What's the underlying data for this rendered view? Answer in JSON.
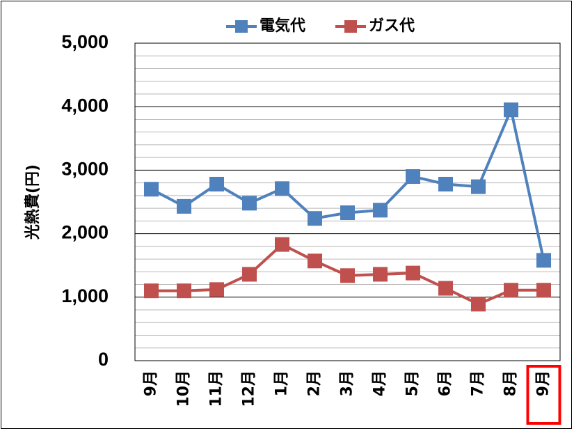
{
  "chart_data": {
    "type": "line",
    "ylabel": "光熱費(円)",
    "categories": [
      "9月",
      "10月",
      "11月",
      "12月",
      "1月",
      "2月",
      "3月",
      "4月",
      "5月",
      "6月",
      "7月",
      "8月",
      "9月"
    ],
    "y_ticks": [
      "0",
      "1,000",
      "2,000",
      "3,000",
      "4,000",
      "5,000"
    ],
    "ylim": [
      0,
      5000
    ],
    "grid": true,
    "legend": "top",
    "highlight_category_index": 12,
    "highlight_color": "#ff0000",
    "series": [
      {
        "name": "電気代",
        "color": "#4f81bd",
        "values": [
          2700,
          2430,
          2780,
          2480,
          2710,
          2240,
          2330,
          2370,
          2900,
          2780,
          2740,
          3950,
          1580
        ]
      },
      {
        "name": "ガス代",
        "color": "#c0504d",
        "values": [
          1100,
          1100,
          1120,
          1360,
          1830,
          1570,
          1340,
          1360,
          1380,
          1140,
          890,
          1110,
          1110
        ]
      }
    ]
  }
}
